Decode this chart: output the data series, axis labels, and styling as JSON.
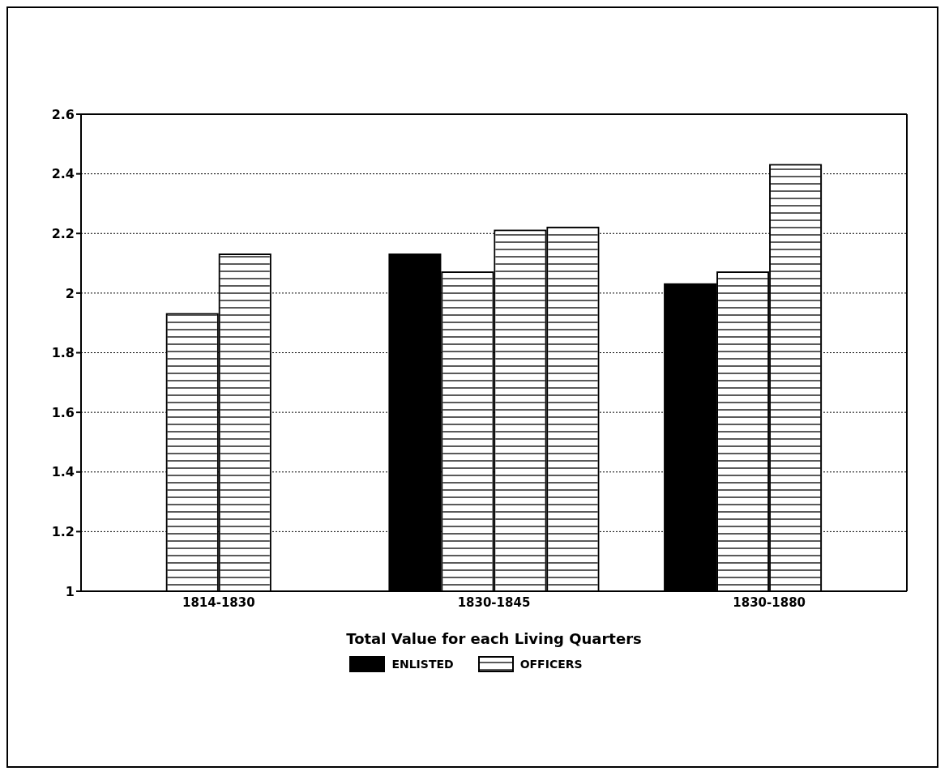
{
  "chart_data": {
    "type": "bar",
    "xlabel": "Total Value for each Living Quarters",
    "categories": [
      "1814-1830",
      "1830-1845",
      "1830-1880"
    ],
    "series": [
      {
        "name": "ENLISTED",
        "color": "#000000",
        "values": [
          null,
          2.13,
          2.03
        ]
      },
      {
        "name": "OFFICERS",
        "color": "#ffffff",
        "values": [
          1.93,
          2.07,
          2.07
        ]
      },
      {
        "color": "#ffffff",
        "values": [
          2.13,
          2.21,
          2.43
        ]
      },
      {
        "color": "#ffffff",
        "values": [
          null,
          2.22,
          null
        ]
      }
    ],
    "ylim": [
      1,
      2.6
    ],
    "yticks": [
      1,
      1.2,
      1.4,
      1.6,
      1.8,
      2,
      2.2,
      2.4,
      2.6
    ],
    "grid": "y",
    "legend": "bottom"
  }
}
